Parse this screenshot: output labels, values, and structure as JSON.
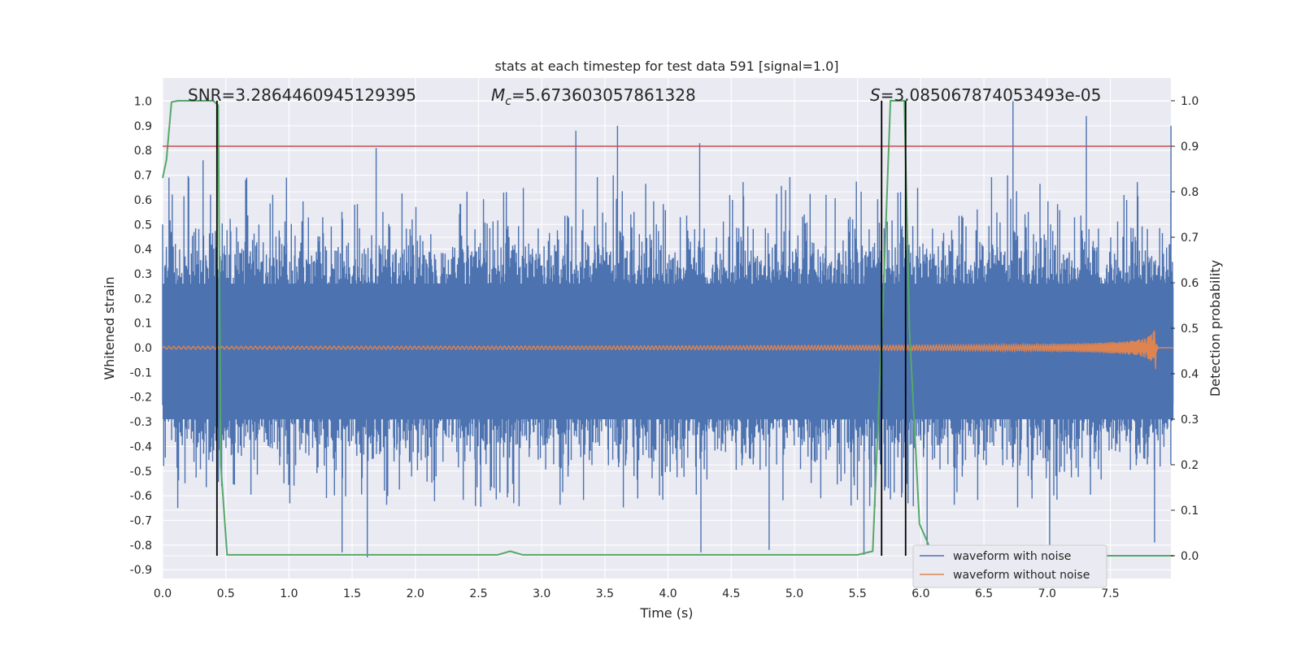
{
  "chart_data": {
    "type": "line",
    "title": "stats at each timestep for test data 591 [signal=1.0]",
    "xlabel": "Time (s)",
    "ylabel": "Whitened strain",
    "y2label": "Detection probability",
    "xlim": [
      0.0,
      8.0
    ],
    "ylim": [
      -0.95,
      1.08
    ],
    "y2lim": [
      -0.045,
      1.045
    ],
    "x_ticks": [
      "0.0",
      "0.5",
      "1.0",
      "1.5",
      "2.0",
      "2.5",
      "3.0",
      "3.5",
      "4.0",
      "4.5",
      "5.0",
      "5.5",
      "6.0",
      "6.5",
      "7.0",
      "7.5"
    ],
    "y_ticks": [
      "1.0",
      "0.9",
      "0.8",
      "0.7",
      "0.6",
      "0.5",
      "0.4",
      "0.3",
      "0.2",
      "0.1",
      "0.0",
      "-0.1",
      "-0.2",
      "-0.3",
      "-0.4",
      "-0.5",
      "-0.6",
      "-0.7",
      "-0.8",
      "-0.9"
    ],
    "y2_ticks": [
      "1.0",
      "0.9",
      "0.8",
      "0.7",
      "0.6",
      "0.5",
      "0.4",
      "0.3",
      "0.2",
      "0.1",
      "0.0"
    ],
    "grid": true,
    "annotations": {
      "snr": "SNR=3.2864460945129395",
      "mc_sym": "M",
      "mc_sub": "c",
      "mc_val": "=5.673603057861328",
      "s_sym": "S",
      "s_val": "=3.085067874053493e-05"
    },
    "threshold_y2": 0.9,
    "vertical_lines_x": [
      0.43,
      5.69,
      5.88
    ],
    "series": [
      {
        "name": "waveform with noise",
        "color": "#4c72b0",
        "description_sampled": "dense noise, approx. uniform envelope",
        "peaks_high_x": [
          0.05,
          0.32,
          0.98,
          1.69,
          3.27,
          3.6,
          4.25,
          6.73,
          7.31,
          7.98
        ],
        "peaks_high_y": [
          0.69,
          0.76,
          0.69,
          0.81,
          0.88,
          0.9,
          0.83,
          1.0,
          0.94,
          0.9
        ],
        "peaks_low_x": [
          0.12,
          1.42,
          1.62,
          4.26,
          4.8,
          5.55,
          6.05,
          7.02,
          7.85
        ],
        "peaks_low_y": [
          -0.65,
          -0.83,
          -0.85,
          -0.83,
          -0.82,
          -0.84,
          -0.81,
          -0.82,
          -0.79
        ]
      },
      {
        "name": "waveform without noise",
        "color": "#dd8452",
        "description_sampled": "chirp growing in amplitude toward merger",
        "merger_x": 7.86,
        "max_amplitude": 0.09
      }
    ],
    "detection_probability": {
      "color": "#55a868",
      "x": [
        0.0,
        0.03,
        0.07,
        0.12,
        0.4,
        0.44,
        0.46,
        0.51,
        2.65,
        2.75,
        2.85,
        5.5,
        5.62,
        5.7,
        5.76,
        5.87,
        5.91,
        5.99,
        6.1,
        8.0
      ],
      "y": [
        0.83,
        0.87,
        0.997,
        1.0,
        1.0,
        0.99,
        0.2,
        0.002,
        0.002,
        0.01,
        0.002,
        0.002,
        0.01,
        0.55,
        1.0,
        1.0,
        0.5,
        0.07,
        0.0,
        0.0
      ]
    },
    "legend": {
      "placement": "lower-right",
      "entries": [
        {
          "label": "waveform with noise",
          "color": "#4c72b0"
        },
        {
          "label": "waveform without noise",
          "color": "#dd8452"
        }
      ]
    }
  }
}
